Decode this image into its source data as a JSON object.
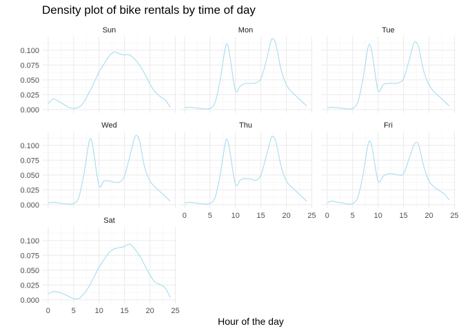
{
  "chart_data": {
    "type": "line",
    "subtype": "density",
    "title": "Density plot of bike rentals by time of day",
    "xlabel": "Hour of the day",
    "ylabel": "",
    "xlim": [
      0,
      24
    ],
    "ylim": [
      0,
      0.12
    ],
    "x_ticks": [
      "0",
      "5",
      "10",
      "15",
      "20",
      "25"
    ],
    "y_ticks": [
      "0.000",
      "0.025",
      "0.050",
      "0.075",
      "0.100"
    ],
    "grid": true,
    "line_color": "#a6dcef",
    "x": [
      0,
      1,
      2,
      3,
      4,
      5,
      6,
      7,
      8,
      8.5,
      9,
      10,
      11,
      12,
      13,
      14,
      15,
      16,
      17,
      17.5,
      18,
      19,
      20,
      21,
      22,
      23,
      24
    ],
    "panels": [
      {
        "name": "Sun",
        "values": [
          0.01,
          0.018,
          0.014,
          0.009,
          0.004,
          0.002,
          0.004,
          0.012,
          0.028,
          0.036,
          0.045,
          0.063,
          0.077,
          0.09,
          0.097,
          0.094,
          0.092,
          0.092,
          0.085,
          0.08,
          0.074,
          0.06,
          0.043,
          0.03,
          0.022,
          0.016,
          0.004
        ]
      },
      {
        "name": "Mon",
        "values": [
          0.003,
          0.004,
          0.003,
          0.002,
          0.001,
          0.002,
          0.012,
          0.05,
          0.104,
          0.108,
          0.085,
          0.032,
          0.04,
          0.044,
          0.044,
          0.045,
          0.052,
          0.08,
          0.116,
          0.118,
          0.108,
          0.066,
          0.042,
          0.03,
          0.022,
          0.014,
          0.006
        ]
      },
      {
        "name": "Tue",
        "values": [
          0.003,
          0.004,
          0.003,
          0.002,
          0.001,
          0.002,
          0.012,
          0.05,
          0.104,
          0.107,
          0.086,
          0.032,
          0.042,
          0.044,
          0.044,
          0.045,
          0.052,
          0.08,
          0.111,
          0.113,
          0.104,
          0.064,
          0.042,
          0.03,
          0.022,
          0.014,
          0.006
        ]
      },
      {
        "name": "Wed",
        "values": [
          0.003,
          0.004,
          0.003,
          0.002,
          0.001,
          0.002,
          0.012,
          0.05,
          0.104,
          0.109,
          0.086,
          0.032,
          0.04,
          0.04,
          0.038,
          0.038,
          0.048,
          0.08,
          0.113,
          0.116,
          0.106,
          0.062,
          0.04,
          0.03,
          0.022,
          0.014,
          0.006
        ]
      },
      {
        "name": "Thu",
        "values": [
          0.003,
          0.004,
          0.003,
          0.002,
          0.001,
          0.002,
          0.012,
          0.05,
          0.104,
          0.107,
          0.085,
          0.034,
          0.042,
          0.044,
          0.043,
          0.041,
          0.05,
          0.08,
          0.112,
          0.114,
          0.104,
          0.064,
          0.04,
          0.03,
          0.022,
          0.014,
          0.006
        ]
      },
      {
        "name": "Fri",
        "values": [
          0.003,
          0.006,
          0.004,
          0.003,
          0.001,
          0.002,
          0.012,
          0.048,
          0.1,
          0.106,
          0.088,
          0.04,
          0.048,
          0.052,
          0.052,
          0.05,
          0.052,
          0.075,
          0.1,
          0.105,
          0.1,
          0.064,
          0.04,
          0.03,
          0.024,
          0.018,
          0.008
        ]
      },
      {
        "name": "Sat",
        "values": [
          0.01,
          0.014,
          0.013,
          0.01,
          0.006,
          0.002,
          0.002,
          0.01,
          0.022,
          0.03,
          0.038,
          0.055,
          0.068,
          0.08,
          0.086,
          0.088,
          0.09,
          0.094,
          0.086,
          0.08,
          0.074,
          0.058,
          0.042,
          0.03,
          0.026,
          0.02,
          0.004
        ]
      }
    ]
  }
}
